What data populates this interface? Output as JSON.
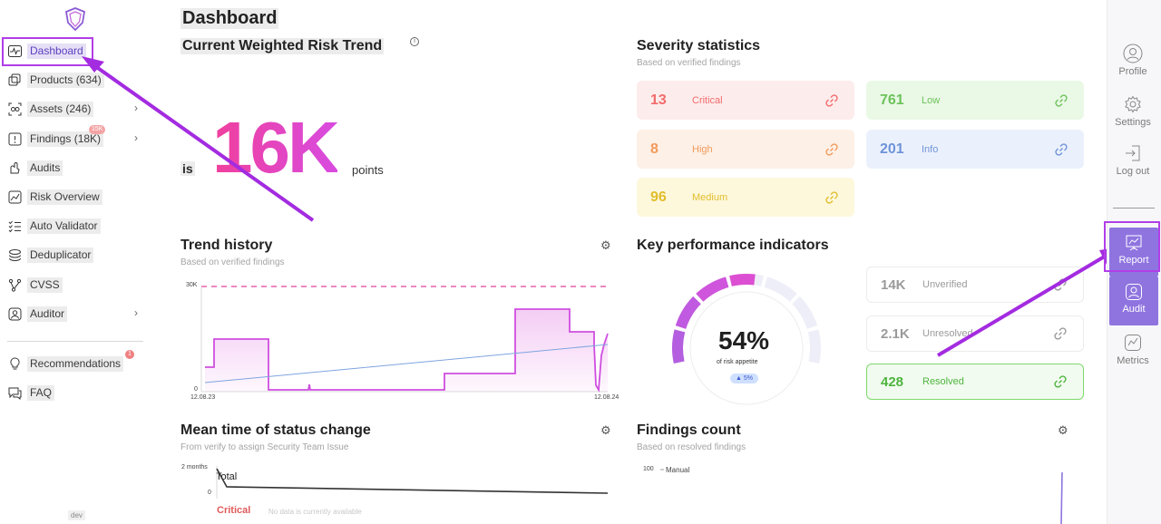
{
  "sidebar": {
    "items": [
      {
        "label": "Dashboard",
        "icon": "pulse-icon"
      },
      {
        "label": "Products (634)",
        "icon": "products-icon"
      },
      {
        "label": "Assets (246)",
        "icon": "assets-icon"
      },
      {
        "label": "Findings (18K)",
        "icon": "findings-icon",
        "badge": "15K"
      },
      {
        "label": "Audits",
        "icon": "audits-icon"
      },
      {
        "label": "Risk Overview",
        "icon": "trend-icon"
      },
      {
        "label": "Auto Validator",
        "icon": "checklist-icon"
      },
      {
        "label": "Deduplicator",
        "icon": "layers-icon"
      },
      {
        "label": "CVSS",
        "icon": "branch-icon"
      },
      {
        "label": "Auditor",
        "icon": "auditor-icon"
      },
      {
        "label": "Recommendations",
        "icon": "bulb-icon",
        "badge": "1"
      },
      {
        "label": "FAQ",
        "icon": "chat-icon"
      }
    ],
    "dev": "dev"
  },
  "rail": {
    "profile": "Profile",
    "settings": "Settings",
    "logout": "Log out",
    "report": "Report",
    "audit": "Audit",
    "metrics": "Metrics"
  },
  "page": {
    "title": "Dashboard"
  },
  "risk": {
    "title": "Current Weighted Risk Trend",
    "prefix": "is",
    "value": "16K",
    "unit": "points"
  },
  "severity": {
    "title": "Severity statistics",
    "subtitle": "Based on verified findings",
    "items": [
      {
        "count": "13",
        "label": "Critical",
        "color": "#f26b6b",
        "bg": "#fdecec"
      },
      {
        "count": "761",
        "label": "Low",
        "color": "#6cc35a",
        "bg": "#eaf8e6"
      },
      {
        "count": "8",
        "label": "High",
        "color": "#f29a5b",
        "bg": "#fdf0e6"
      },
      {
        "count": "201",
        "label": "Info",
        "color": "#6f93d8",
        "bg": "#ebf1fc"
      },
      {
        "count": "96",
        "label": "Medium",
        "color": "#e1bd2c",
        "bg": "#fdf8dc"
      }
    ]
  },
  "trend": {
    "title": "Trend history",
    "subtitle": "Based on verified findings",
    "y_top": "30K",
    "y_zero": "0",
    "x_start": "12.08.23",
    "x_end": "12.08.24"
  },
  "kpi": {
    "title": "Key performance indicators",
    "gauge_value": "54%",
    "gauge_label": "of risk appetite",
    "gauge_delta": "▲ 5%",
    "gauge_fraction": 0.54,
    "cards": [
      {
        "count": "14K",
        "label": "Unverified"
      },
      {
        "count": "2.1K",
        "label": "Unresolved"
      },
      {
        "count": "428",
        "label": "Resolved"
      }
    ]
  },
  "mttr": {
    "title": "Mean time of status change",
    "subtitle": "From verify to assign Security Team Issue",
    "y_top": "2 months",
    "y_zero": "0",
    "total": "Total",
    "critical": "Critical",
    "nodata": "No data is currently available"
  },
  "findings_count": {
    "title": "Findings count",
    "subtitle": "Based on resolved findings",
    "y_top": "100",
    "series": "Manual"
  }
}
